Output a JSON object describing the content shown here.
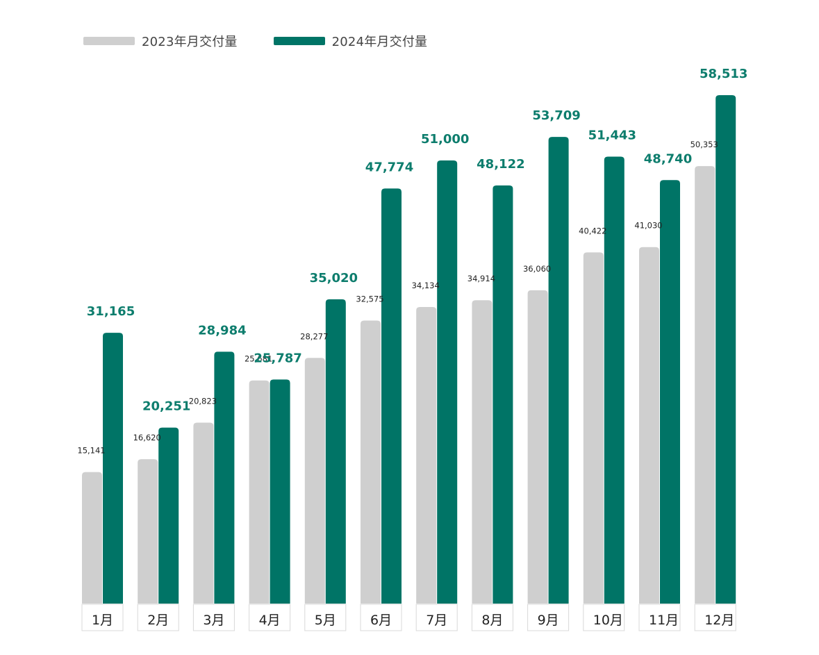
{
  "chart_data": {
    "type": "bar",
    "title": "",
    "xlabel": "",
    "ylabel": "",
    "categories": [
      "1月",
      "2月",
      "3月",
      "4月",
      "5月",
      "6月",
      "7月",
      "8月",
      "9月",
      "10月",
      "11月",
      "12月"
    ],
    "series": [
      {
        "name": "2023年月交付量",
        "color": "#cfcfcf",
        "label_color": "#222222",
        "values": [
          15141,
          16620,
          20823,
          25681,
          28277,
          32575,
          34134,
          34914,
          36060,
          40422,
          41030,
          50353
        ],
        "labels": [
          "15,141",
          "16,620",
          "20,823",
          "25,681",
          "28,277",
          "32,575",
          "34,134",
          "34,914",
          "36,060",
          "40,422",
          "41,030",
          "50,353"
        ]
      },
      {
        "name": "2024年月交付量",
        "color": "#007466",
        "label_color": "#0d7d6d",
        "values": [
          31165,
          20251,
          28984,
          25787,
          35020,
          47774,
          51000,
          48122,
          53709,
          51443,
          48740,
          58513
        ],
        "labels": [
          "31,165",
          "20,251",
          "28,984",
          "25,787",
          "35,020",
          "47,774",
          "51,000",
          "48,122",
          "53,709",
          "51,443",
          "48,740",
          "58,513"
        ]
      }
    ],
    "ylim": [
      0,
      58513
    ],
    "grid": false,
    "legend_position": "top-left"
  }
}
